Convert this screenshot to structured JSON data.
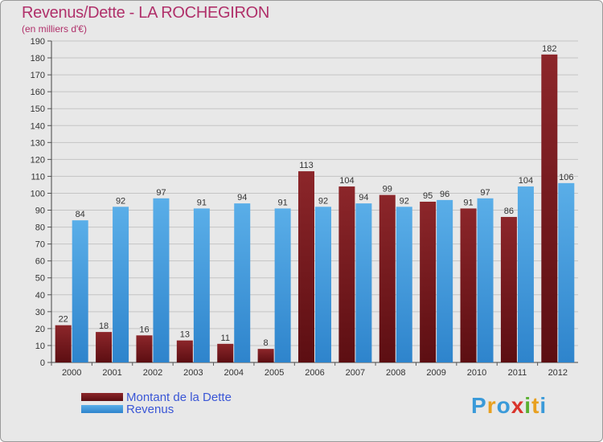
{
  "chart_data": {
    "type": "bar",
    "title": "Revenus/Dette - LA ROCHEGIRON",
    "subtitle": "(en milliers d'€)",
    "categories": [
      "2000",
      "2001",
      "2002",
      "2003",
      "2004",
      "2005",
      "2006",
      "2007",
      "2008",
      "2009",
      "2010",
      "2011",
      "2012"
    ],
    "series": [
      {
        "name": "Montant de la Dette",
        "color": "#7a1e22",
        "values": [
          22,
          18,
          16,
          13,
          11,
          8,
          113,
          104,
          99,
          95,
          91,
          86,
          182
        ]
      },
      {
        "name": "Revenus",
        "color": "#3a94dc",
        "values": [
          84,
          92,
          97,
          91,
          94,
          91,
          92,
          94,
          92,
          96,
          97,
          104,
          106
        ]
      }
    ],
    "ylim": [
      0,
      190
    ],
    "yticks": [
      0,
      10,
      20,
      30,
      40,
      50,
      60,
      70,
      80,
      90,
      100,
      110,
      120,
      130,
      140,
      150,
      160,
      170,
      180,
      190
    ],
    "grid": true,
    "legend": "bottom-left"
  },
  "logo": {
    "text": "Proxiti"
  }
}
